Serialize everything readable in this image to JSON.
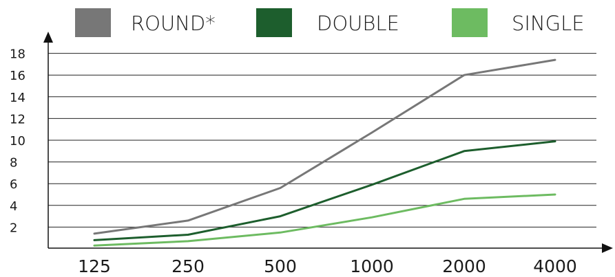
{
  "chart_data": {
    "type": "line",
    "categories": [
      "125",
      "250",
      "500",
      "1000",
      "2000",
      "4000"
    ],
    "series": [
      {
        "name": "ROUND*",
        "color": "#777777",
        "values": [
          1.4,
          2.6,
          5.6,
          10.7,
          16.0,
          17.4
        ]
      },
      {
        "name": "DOUBLE",
        "color": "#1d5e2d",
        "values": [
          0.8,
          1.3,
          3.0,
          5.9,
          9.0,
          9.9
        ]
      },
      {
        "name": "SINGLE",
        "color": "#6dbb61",
        "values": [
          0.3,
          0.7,
          1.5,
          2.9,
          4.6,
          5.0
        ]
      }
    ],
    "yticks": [
      2,
      4,
      6,
      8,
      10,
      12,
      14,
      16,
      18
    ],
    "ylim": [
      0,
      18
    ],
    "grid": true,
    "legend": "top",
    "title": "",
    "xlabel": "",
    "ylabel": ""
  }
}
